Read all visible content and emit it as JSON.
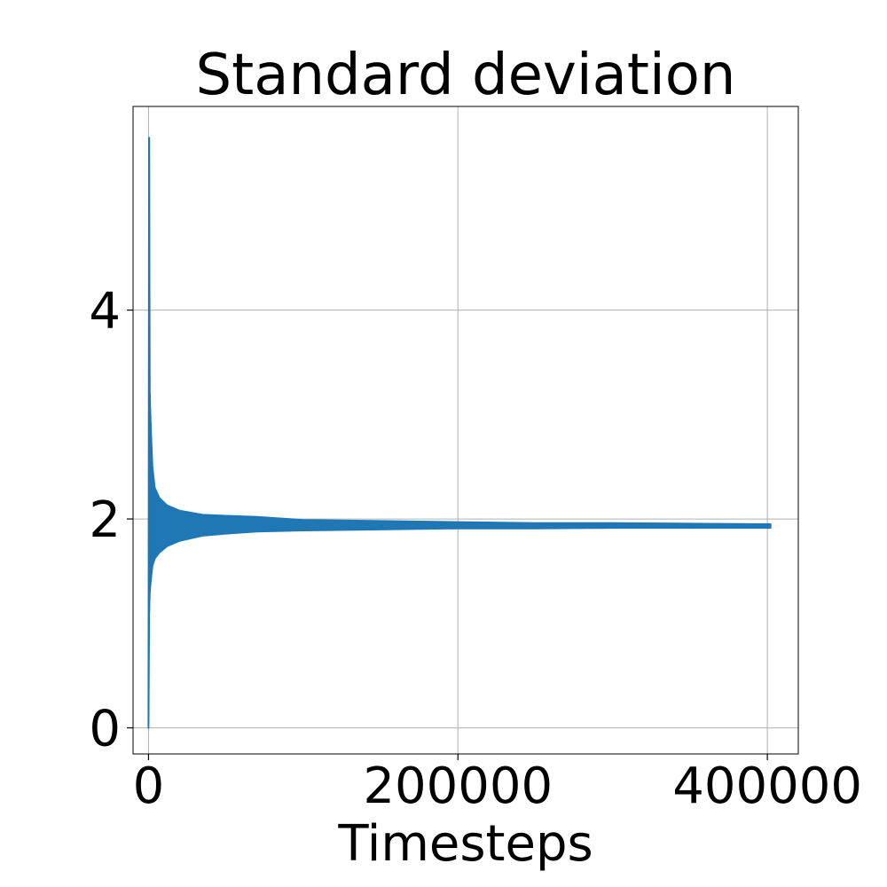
{
  "chart_data": {
    "type": "line",
    "title": "Standard deviation",
    "xlabel": "Timesteps",
    "ylabel": "",
    "xlim": [
      -10000,
      420000
    ],
    "ylim": [
      -0.25,
      5.95
    ],
    "xticks": [
      0,
      200000,
      400000
    ],
    "xtick_labels": [
      "0",
      "200000",
      "400000"
    ],
    "yticks": [
      0,
      2,
      4
    ],
    "ytick_labels": [
      "0",
      "2",
      "4"
    ],
    "grid": true,
    "series": [
      {
        "name": "",
        "color": "#1f77b4",
        "x": [
          0,
          400,
          800,
          1500,
          2500,
          4000,
          7000,
          12000,
          20000,
          35000,
          50000,
          70000,
          100000,
          150000,
          200000,
          250000,
          300000,
          350000,
          402000
        ],
        "upper": [
          0.0,
          5.65,
          3.2,
          2.85,
          2.5,
          2.3,
          2.2,
          2.13,
          2.08,
          2.04,
          2.03,
          2.02,
          1.99,
          1.98,
          1.97,
          1.96,
          1.96,
          1.955,
          1.95
        ],
        "lower": [
          0.0,
          1.1,
          1.3,
          1.42,
          1.55,
          1.62,
          1.68,
          1.74,
          1.79,
          1.84,
          1.86,
          1.88,
          1.89,
          1.9,
          1.91,
          1.91,
          1.915,
          1.915,
          1.915
        ]
      }
    ]
  }
}
